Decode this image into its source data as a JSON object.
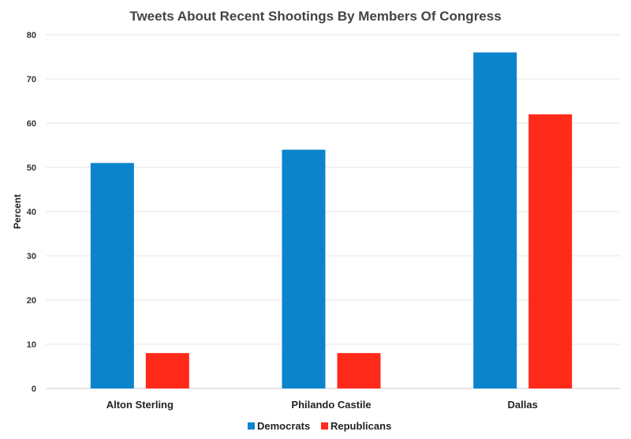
{
  "chart_data": {
    "type": "bar",
    "title": "Tweets About Recent Shootings By Members Of Congress",
    "xlabel": "",
    "ylabel": "Percent",
    "categories": [
      "Alton Sterling",
      "Philando Castile",
      "Dallas"
    ],
    "series": [
      {
        "name": "Democrats",
        "values": [
          51,
          54,
          76
        ],
        "color": "#0b84cc"
      },
      {
        "name": "Republicans",
        "values": [
          8,
          8,
          62
        ],
        "color": "#ff2a1a"
      }
    ],
    "ylim": [
      0,
      80
    ],
    "yticks": [
      0,
      10,
      20,
      30,
      40,
      50,
      60,
      70,
      80
    ],
    "grid": true,
    "legend": "bottom"
  }
}
